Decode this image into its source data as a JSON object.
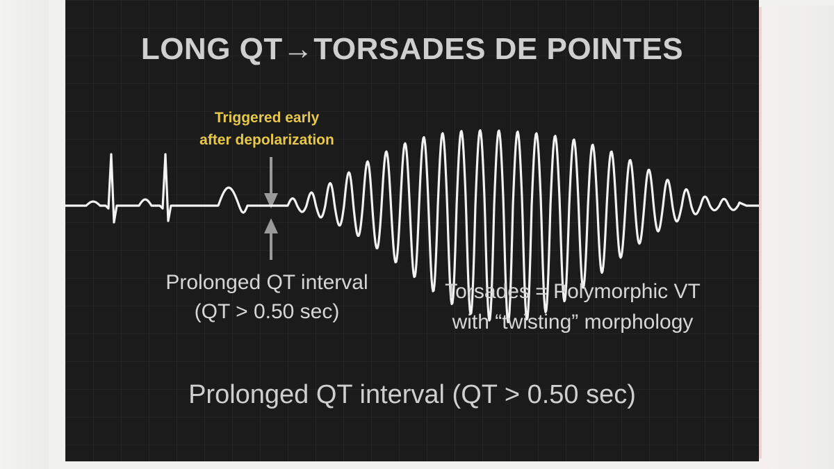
{
  "title": "LONG QT→TORSADES DE POINTES",
  "callout_early": {
    "line1": "Triggered early",
    "line2": "after depolarization",
    "color": "#e8c84a"
  },
  "label_qt": {
    "line1": "Prolonged QT interval",
    "line2": "(QT > 0.50 sec)"
  },
  "label_torsades": {
    "line1": "Torsades = Polymorphic VT",
    "line2": "with “twisting” morphology"
  },
  "caption": "Prolonged QT interval (QT > 0.50 sec)",
  "colors": {
    "background": "#1b1b1b",
    "trace": "#f2f2f2",
    "text": "#d6d6d6",
    "arrow": "#9a9a9a"
  },
  "icons": {
    "down_arrow": "arrow-down-icon",
    "up_arrow": "arrow-up-icon"
  }
}
